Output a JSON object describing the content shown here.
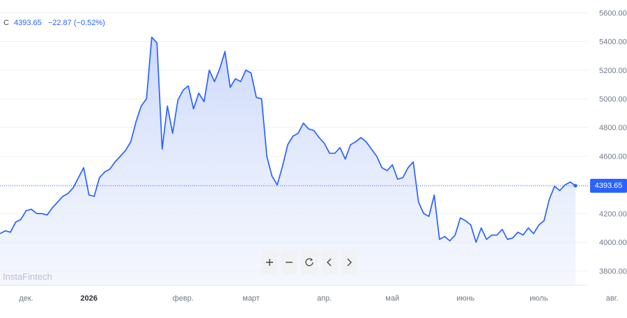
{
  "legend": {
    "symbol": "C",
    "last": "4393.65",
    "change": "−22.87 (−0.52%)"
  },
  "watermark": "InstaFintech",
  "price_tag": "4393.65",
  "toolbar": {
    "buttons": [
      "zoom-in",
      "zoom-out",
      "reset",
      "scroll-left",
      "scroll-right"
    ]
  },
  "colors": {
    "line": "#2962ff",
    "area": "#dde6fb",
    "grid": "#eef0f3",
    "axis_text": "#707a8a",
    "price_line": "#2962ff"
  },
  "chart_data": {
    "type": "area",
    "ylim": [
      3700,
      5650
    ],
    "y_ticks": [
      "5600.00",
      "5400.00",
      "5200.00",
      "5000.00",
      "4800.00",
      "4600.00",
      "4400.00",
      "4200.00",
      "4000.00",
      "3800.00"
    ],
    "x_ticks": [
      {
        "label": "дек.",
        "index": 5
      },
      {
        "label": "2026",
        "index": 17,
        "bold": true
      },
      {
        "label": "февр.",
        "index": 35
      },
      {
        "label": "март",
        "index": 48
      },
      {
        "label": "апр.",
        "index": 62
      },
      {
        "label": "май",
        "index": 75
      },
      {
        "label": "июнь",
        "index": 89
      },
      {
        "label": "июль",
        "index": 103
      },
      {
        "label": "авг.",
        "index": 117
      }
    ],
    "last_value": 4393.65,
    "values": [
      4060,
      4080,
      4070,
      4140,
      4160,
      4220,
      4230,
      4200,
      4200,
      4190,
      4240,
      4280,
      4320,
      4340,
      4380,
      4450,
      4520,
      4330,
      4320,
      4450,
      4490,
      4510,
      4560,
      4600,
      4640,
      4700,
      4840,
      4950,
      5000,
      5430,
      5390,
      4650,
      4950,
      4760,
      4990,
      5060,
      5090,
      4930,
      5040,
      4980,
      5200,
      5120,
      5210,
      5330,
      5080,
      5140,
      5120,
      5200,
      5180,
      5010,
      5000,
      4600,
      4460,
      4400,
      4530,
      4680,
      4740,
      4760,
      4830,
      4790,
      4780,
      4730,
      4690,
      4620,
      4620,
      4660,
      4580,
      4680,
      4700,
      4730,
      4700,
      4650,
      4600,
      4520,
      4500,
      4540,
      4440,
      4450,
      4520,
      4560,
      4280,
      4200,
      4180,
      4330,
      4020,
      4040,
      4010,
      4050,
      4170,
      4150,
      4120,
      4000,
      4100,
      4020,
      4050,
      4050,
      4090,
      4020,
      4030,
      4070,
      4050,
      4100,
      4060,
      4120,
      4150,
      4300,
      4390,
      4360,
      4400,
      4420,
      4394
    ]
  }
}
